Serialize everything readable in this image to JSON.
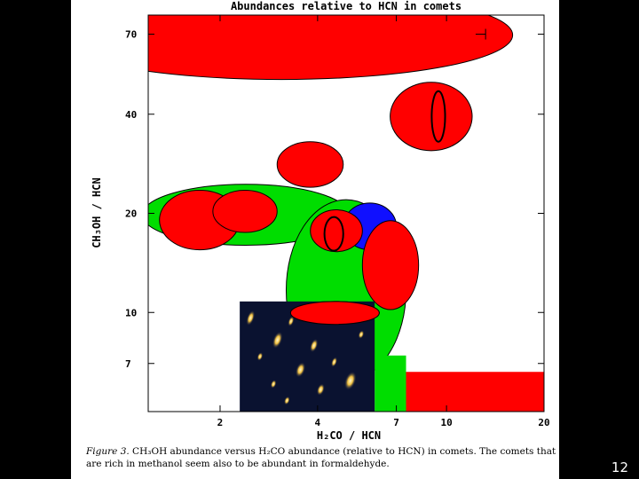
{
  "slide": {
    "page_number": "12",
    "background": "#000000"
  },
  "caption": {
    "figure_label": "Figure 3.",
    "text": " CH₃OH abundance versus H₂CO abundance (relative to HCN) in comets. The comets that are rich in methanol seem also to be abundant in formaldehyde."
  },
  "colors": {
    "red": "#ff0000",
    "green": "#00dd00",
    "blue": "#1010ff",
    "outline": "#000000"
  },
  "chart_data": {
    "type": "scatter",
    "title": "Abundances relative to HCN in comets",
    "xlabel": "H₂CO / HCN",
    "ylabel": "CH₃OH / HCN",
    "x_scale": "log",
    "y_scale": "log",
    "xlim": [
      1.2,
      20
    ],
    "ylim": [
      5,
      80
    ],
    "x_ticks": [
      {
        "value": 2,
        "label": "2"
      },
      {
        "value": 4,
        "label": "4"
      },
      {
        "value": 7,
        "label": "7"
      },
      {
        "value": 10,
        "label": "10"
      },
      {
        "value": 20,
        "label": "20"
      }
    ],
    "y_ticks": [
      {
        "value": 7,
        "label": "7"
      },
      {
        "value": 10,
        "label": "10"
      },
      {
        "value": 20,
        "label": "20"
      },
      {
        "value": 40,
        "label": "40"
      },
      {
        "value": 70,
        "label": "70"
      }
    ],
    "regions": [
      {
        "shape": "ellipse",
        "color": "green",
        "x": [
          1.15,
          5.0
        ],
        "y": [
          16.0,
          24.5
        ]
      },
      {
        "shape": "ellipse",
        "color": "red",
        "x": [
          1.3,
          2.3
        ],
        "y": [
          15.5,
          23.5
        ]
      },
      {
        "shape": "ellipse",
        "color": "red",
        "x": [
          1.9,
          3.0
        ],
        "y": [
          17.5,
          23.5
        ]
      },
      {
        "shape": "ellipse",
        "color": "green",
        "x": [
          3.2,
          7.5
        ],
        "y": [
          6.2,
          22.0
        ]
      },
      {
        "shape": "rect",
        "color": "green",
        "x": [
          6.0,
          7.5
        ],
        "y": [
          5.0,
          7.4
        ]
      },
      {
        "shape": "ellipse",
        "color": "red",
        "x": [
          3.0,
          4.8
        ],
        "y": [
          24.0,
          33.0
        ]
      },
      {
        "shape": "ellipse",
        "color": "blue",
        "x": [
          4.8,
          7.0
        ],
        "y": [
          15.5,
          21.5
        ]
      },
      {
        "shape": "ellipse",
        "color": "red",
        "x": [
          5.5,
          8.2
        ],
        "y": [
          10.2,
          19.0
        ]
      },
      {
        "shape": "ellipse",
        "color": "red",
        "x": [
          3.8,
          5.5
        ],
        "y": [
          15.3,
          20.5
        ]
      },
      {
        "shape": "ellipse",
        "color": "red",
        "x": [
          3.3,
          6.2
        ],
        "y": [
          9.2,
          10.8
        ]
      },
      {
        "shape": "ellipse",
        "color": "red",
        "x": [
          6.7,
          12.0
        ],
        "y": [
          31.0,
          50.0
        ]
      },
      {
        "shape": "ellipse",
        "color": "red",
        "x": [
          0.6,
          16.0
        ],
        "y": [
          51.0,
          95.0
        ]
      },
      {
        "shape": "rect",
        "color": "red",
        "x": [
          7.5,
          20.0
        ],
        "y": [
          5.0,
          6.6
        ]
      },
      {
        "shape": "outline-ellipse",
        "color": "outline",
        "x": [
          4.2,
          4.8
        ],
        "y": [
          15.4,
          19.5
        ]
      },
      {
        "shape": "outline-ellipse",
        "color": "outline",
        "x": [
          9.0,
          9.9
        ],
        "y": [
          33.0,
          47.0
        ]
      }
    ],
    "photo": {
      "x": [
        2.3,
        6.0
      ],
      "y": [
        5.0,
        10.8
      ]
    },
    "errorbar": {
      "x": [
        12.3,
        13.2
      ],
      "y": 70
    }
  }
}
